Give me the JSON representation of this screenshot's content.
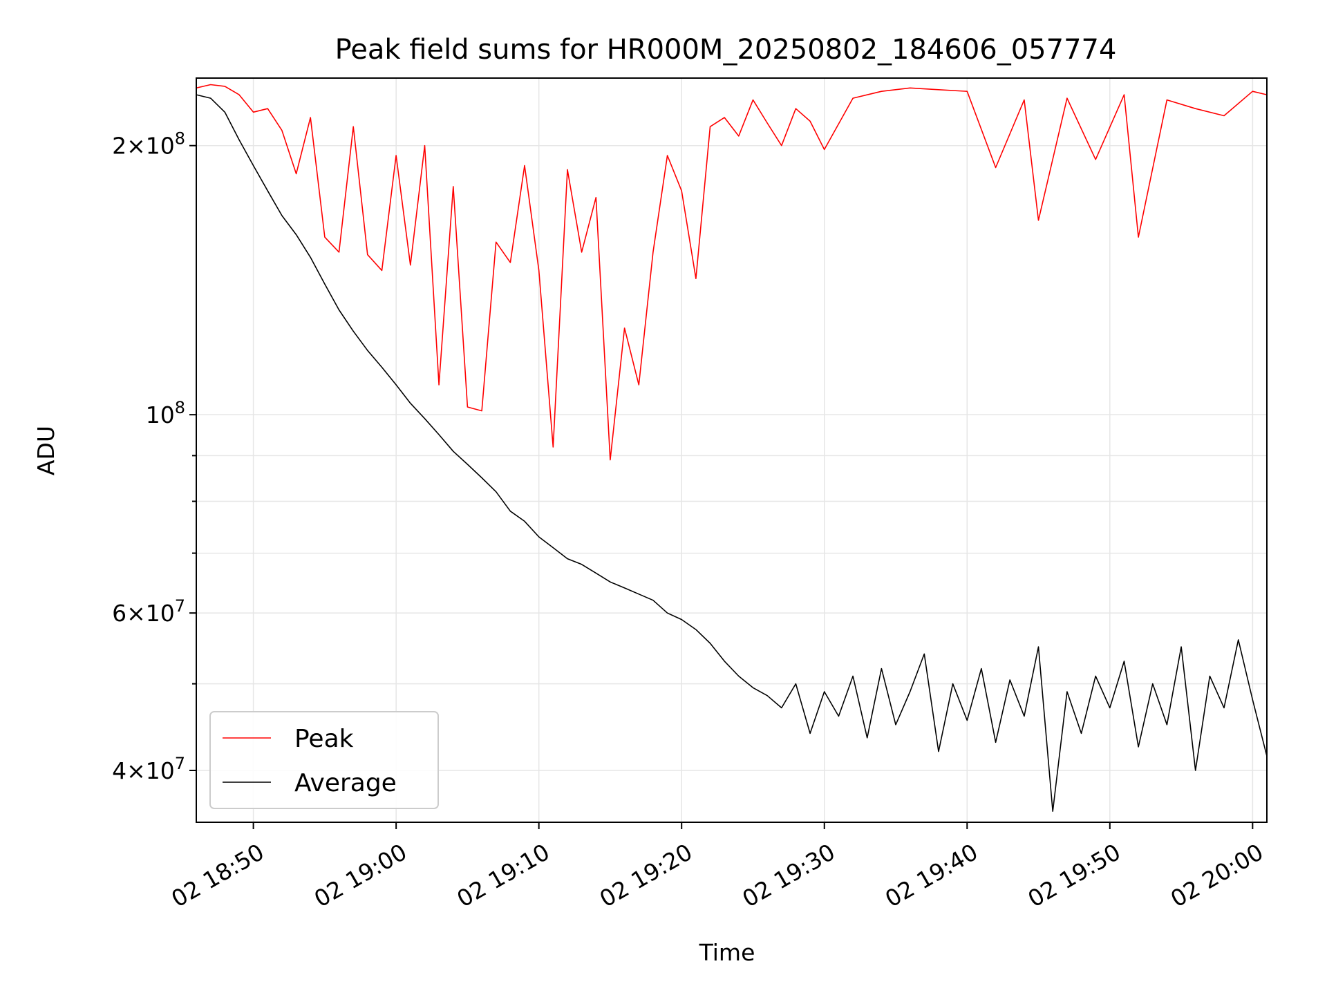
{
  "chart_data": {
    "type": "line",
    "title": "Peak field sums for HR000M_20250802_184606_057774",
    "xlabel": "Time",
    "ylabel": "ADU",
    "x_unit": "time (2025-08-02, HH:MM)",
    "xlim": [
      "2025-08-02 18:46",
      "2025-08-02 20:01"
    ],
    "ylim": [
      35000000,
      238000000
    ],
    "yscale": "log",
    "grid": true,
    "legend_position": "lower left",
    "x_ticks": [
      "18:50",
      "19:00",
      "19:10",
      "19:20",
      "19:30",
      "19:40",
      "19:50",
      "20:00"
    ],
    "x_tick_labels": [
      "02 18:50",
      "02 19:00",
      "02 19:10",
      "02 19:20",
      "02 19:30",
      "02 19:40",
      "02 19:50",
      "02 20:00"
    ],
    "y_tick_labels": [
      {
        "value": 40000000,
        "base": "4",
        "exp": "7"
      },
      {
        "value": 60000000,
        "base": "6",
        "exp": "7"
      },
      {
        "value": 100000000,
        "base": "",
        "exp": "8"
      },
      {
        "value": 200000000,
        "base": "2",
        "exp": "8"
      }
    ],
    "y_minor_ticks": [
      50000000,
      70000000,
      80000000,
      90000000
    ],
    "series": [
      {
        "name": "Peak",
        "color": "#ff0000",
        "points": [
          [
            "18:46",
            232000000
          ],
          [
            "18:47",
            234000000
          ],
          [
            "18:48",
            233000000
          ],
          [
            "18:49",
            228000000
          ],
          [
            "18:50",
            218000000
          ],
          [
            "18:51",
            220000000
          ],
          [
            "18:52",
            208000000
          ],
          [
            "18:53",
            186000000
          ],
          [
            "18:54",
            215000000
          ],
          [
            "18:55",
            158000000
          ],
          [
            "18:56",
            152000000
          ],
          [
            "18:57",
            210000000
          ],
          [
            "18:58",
            151000000
          ],
          [
            "18:59",
            145000000
          ],
          [
            "19:00",
            195000000
          ],
          [
            "19:01",
            147000000
          ],
          [
            "19:02",
            200000000
          ],
          [
            "19:03",
            108000000
          ],
          [
            "19:04",
            180000000
          ],
          [
            "19:05",
            102000000
          ],
          [
            "19:06",
            101000000
          ],
          [
            "19:07",
            156000000
          ],
          [
            "19:08",
            148000000
          ],
          [
            "19:09",
            190000000
          ],
          [
            "19:10",
            145000000
          ],
          [
            "19:11",
            92000000
          ],
          [
            "19:12",
            188000000
          ],
          [
            "19:13",
            152000000
          ],
          [
            "19:14",
            175000000
          ],
          [
            "19:15",
            89000000
          ],
          [
            "19:16",
            125000000
          ],
          [
            "19:17",
            108000000
          ],
          [
            "19:18",
            152000000
          ],
          [
            "19:19",
            195000000
          ],
          [
            "19:20",
            178000000
          ],
          [
            "19:21",
            142000000
          ],
          [
            "19:22",
            210000000
          ],
          [
            "19:23",
            215000000
          ],
          [
            "19:24",
            205000000
          ],
          [
            "19:25",
            225000000
          ],
          [
            "19:26",
            212000000
          ],
          [
            "19:27",
            200000000
          ],
          [
            "19:28",
            220000000
          ],
          [
            "19:29",
            213000000
          ],
          [
            "19:30",
            198000000
          ],
          [
            "19:32",
            226000000
          ],
          [
            "19:34",
            230000000
          ],
          [
            "19:36",
            232000000
          ],
          [
            "19:38",
            231000000
          ],
          [
            "19:40",
            230000000
          ],
          [
            "19:42",
            189000000
          ],
          [
            "19:44",
            225000000
          ],
          [
            "19:45",
            165000000
          ],
          [
            "19:47",
            226000000
          ],
          [
            "19:49",
            193000000
          ],
          [
            "19:51",
            228000000
          ],
          [
            "19:52",
            158000000
          ],
          [
            "19:54",
            225000000
          ],
          [
            "19:56",
            220000000
          ],
          [
            "19:58",
            216000000
          ],
          [
            "20:00",
            230000000
          ],
          [
            "20:01",
            228000000
          ]
        ]
      },
      {
        "name": "Average",
        "color": "#000000",
        "points": [
          [
            "18:46",
            228000000
          ],
          [
            "18:47",
            226000000
          ],
          [
            "18:48",
            218000000
          ],
          [
            "18:49",
            203000000
          ],
          [
            "18:50",
            190000000
          ],
          [
            "18:51",
            178000000
          ],
          [
            "18:52",
            167000000
          ],
          [
            "18:53",
            159000000
          ],
          [
            "18:54",
            150000000
          ],
          [
            "18:55",
            140000000
          ],
          [
            "18:56",
            131000000
          ],
          [
            "18:57",
            124000000
          ],
          [
            "18:58",
            118000000
          ],
          [
            "18:59",
            113000000
          ],
          [
            "19:00",
            108000000
          ],
          [
            "19:01",
            103000000
          ],
          [
            "19:02",
            99000000
          ],
          [
            "19:03",
            95000000
          ],
          [
            "19:04",
            91000000
          ],
          [
            "19:05",
            88000000
          ],
          [
            "19:06",
            85000000
          ],
          [
            "19:07",
            82000000
          ],
          [
            "19:08",
            78000000
          ],
          [
            "19:09",
            76000000
          ],
          [
            "19:10",
            73000000
          ],
          [
            "19:11",
            71000000
          ],
          [
            "19:12",
            69000000
          ],
          [
            "19:13",
            68000000
          ],
          [
            "19:14",
            66500000
          ],
          [
            "19:15",
            65000000
          ],
          [
            "19:16",
            64000000
          ],
          [
            "19:17",
            63000000
          ],
          [
            "19:18",
            62000000
          ],
          [
            "19:19",
            60000000
          ],
          [
            "19:20",
            59000000
          ],
          [
            "19:21",
            57500000
          ],
          [
            "19:22",
            55500000
          ],
          [
            "19:23",
            53000000
          ],
          [
            "19:24",
            51000000
          ],
          [
            "19:25",
            49500000
          ],
          [
            "19:26",
            48500000
          ],
          [
            "19:27",
            47000000
          ],
          [
            "19:28",
            50000000
          ],
          [
            "19:29",
            44000000
          ],
          [
            "19:30",
            49000000
          ],
          [
            "19:31",
            46000000
          ],
          [
            "19:32",
            51000000
          ],
          [
            "19:33",
            43500000
          ],
          [
            "19:34",
            52000000
          ],
          [
            "19:35",
            45000000
          ],
          [
            "19:36",
            49000000
          ],
          [
            "19:37",
            54000000
          ],
          [
            "19:38",
            42000000
          ],
          [
            "19:39",
            50000000
          ],
          [
            "19:40",
            45500000
          ],
          [
            "19:41",
            52000000
          ],
          [
            "19:42",
            43000000
          ],
          [
            "19:43",
            50500000
          ],
          [
            "19:44",
            46000000
          ],
          [
            "19:45",
            55000000
          ],
          [
            "19:46",
            36000000
          ],
          [
            "19:47",
            49000000
          ],
          [
            "19:48",
            44000000
          ],
          [
            "19:49",
            51000000
          ],
          [
            "19:50",
            47000000
          ],
          [
            "19:51",
            53000000
          ],
          [
            "19:52",
            42500000
          ],
          [
            "19:53",
            50000000
          ],
          [
            "19:54",
            45000000
          ],
          [
            "19:55",
            55000000
          ],
          [
            "19:56",
            40000000
          ],
          [
            "19:57",
            51000000
          ],
          [
            "19:58",
            47000000
          ],
          [
            "19:59",
            56000000
          ],
          [
            "20:00",
            48000000
          ],
          [
            "20:01",
            41500000
          ]
        ]
      }
    ]
  }
}
